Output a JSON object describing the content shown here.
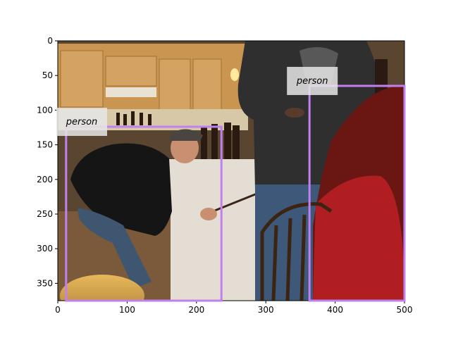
{
  "chart_data": {
    "type": "image-annotation",
    "title": "",
    "xlabel": "",
    "ylabel": "",
    "xlim": [
      0,
      500
    ],
    "ylim": [
      375,
      0
    ],
    "x_ticks": [
      0,
      100,
      200,
      300,
      400,
      500
    ],
    "y_ticks": [
      0,
      50,
      100,
      150,
      200,
      250,
      300,
      350
    ],
    "grid": false,
    "box_color": "#c080f0",
    "boxes": [
      {
        "label": "person",
        "x1": 12,
        "y1": 124,
        "x2": 236,
        "y2": 375
      },
      {
        "label": "person",
        "x1": 363,
        "y1": 65,
        "x2": 500,
        "y2": 375
      }
    ]
  },
  "image": {
    "wall_color": "#6b5534",
    "cabinet_color": "#c9964f",
    "floor_color": "#7a5a3a"
  }
}
